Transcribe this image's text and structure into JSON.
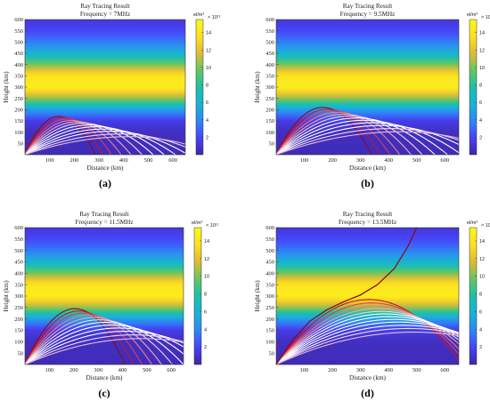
{
  "colormap": [
    "#3e26a8",
    "#4743f8",
    "#2e87f7",
    "#1ab2d5",
    "#1cc0aa",
    "#66c561",
    "#ddbc35",
    "#fddf23",
    "#f9fb15"
  ],
  "chart_data": [
    {
      "type": "line",
      "title": "Ray Tracing Result",
      "subtitle": "Frequency = 7MHz",
      "caption": "(a)",
      "xlabel": "Distance (km)",
      "ylabel": "Height (km)",
      "xlim": [
        0,
        650
      ],
      "ylim": [
        0,
        600
      ],
      "xticks": [
        100,
        200,
        300,
        400,
        500,
        600
      ],
      "yticks": [
        50,
        100,
        150,
        200,
        250,
        300,
        350,
        400,
        450,
        500,
        550,
        600
      ],
      "colorbar": {
        "unit": "el/m³",
        "exponent": "× 10¹¹",
        "ticks": [
          2,
          4,
          6,
          8,
          10,
          12,
          14
        ],
        "range": [
          0,
          15.5
        ]
      },
      "density_profile_km": [
        [
          0,
          0.4
        ],
        [
          100,
          0.6
        ],
        [
          150,
          1.5
        ],
        [
          200,
          4.8
        ],
        [
          250,
          10.5
        ],
        [
          300,
          14.5
        ],
        [
          350,
          14
        ],
        [
          400,
          10
        ],
        [
          450,
          6
        ],
        [
          500,
          3.5
        ],
        [
          550,
          2
        ],
        [
          600,
          1.2
        ]
      ],
      "series": [
        {
          "peak_x": 135,
          "peak_y": 170,
          "range_x": 285,
          "color": "#8b0a1a"
        },
        {
          "peak_x": 150,
          "peak_y": 165,
          "range_x": 315,
          "color": "#c7162b"
        },
        {
          "peak_x": 168,
          "peak_y": 158,
          "range_x": 350,
          "color": "#e8394d"
        },
        {
          "peak_x": 188,
          "peak_y": 152,
          "range_x": 390,
          "color": "#f1798a"
        },
        {
          "peak_x": 210,
          "peak_y": 146,
          "range_x": 430,
          "color": "#f6a9a8"
        },
        {
          "peak_x": 235,
          "peak_y": 140,
          "range_x": 475,
          "color": "#fbd6c8"
        },
        {
          "peak_x": 260,
          "peak_y": 132,
          "range_x": 520,
          "color": "#ffffff"
        },
        {
          "peak_x": 290,
          "peak_y": 124,
          "range_x": 565,
          "color": "#ffffff"
        },
        {
          "peak_x": 320,
          "peak_y": 114,
          "range_x": 610,
          "color": "#ffffff"
        },
        {
          "peak_x": 350,
          "peak_y": 104,
          "range_x": 660,
          "color": "#ffffff"
        },
        {
          "peak_x": 385,
          "peak_y": 92,
          "range_x": 720,
          "color": "#f5d7ec"
        },
        {
          "peak_x": 420,
          "peak_y": 80,
          "range_x": 780,
          "color": "#e7bdd6"
        }
      ]
    },
    {
      "type": "line",
      "title": "Ray Tracing Result",
      "subtitle": "Frequency = 9.5MHz",
      "caption": "(b)",
      "xlabel": "Distance (km)",
      "ylabel": "Height (km)",
      "xlim": [
        0,
        650
      ],
      "ylim": [
        0,
        600
      ],
      "xticks": [
        100,
        200,
        300,
        400,
        500,
        600
      ],
      "yticks": [
        50,
        100,
        150,
        200,
        250,
        300,
        350,
        400,
        450,
        500,
        550,
        600
      ],
      "colorbar": {
        "unit": "el/m³",
        "exponent": "× 10¹¹",
        "ticks": [
          2,
          4,
          6,
          8,
          10,
          12,
          14
        ],
        "range": [
          0,
          15.5
        ]
      },
      "density_profile_km": [
        [
          0,
          0.4
        ],
        [
          100,
          0.6
        ],
        [
          150,
          1.5
        ],
        [
          200,
          4.8
        ],
        [
          250,
          10.5
        ],
        [
          300,
          14.5
        ],
        [
          350,
          14
        ],
        [
          400,
          10
        ],
        [
          450,
          6
        ],
        [
          500,
          3.5
        ],
        [
          550,
          2
        ],
        [
          600,
          1.2
        ]
      ],
      "series": [
        {
          "peak_x": 165,
          "peak_y": 210,
          "range_x": 340,
          "color": "#8b0a1a"
        },
        {
          "peak_x": 180,
          "peak_y": 202,
          "range_x": 370,
          "color": "#c7162b"
        },
        {
          "peak_x": 198,
          "peak_y": 195,
          "range_x": 405,
          "color": "#e8394d"
        },
        {
          "peak_x": 218,
          "peak_y": 188,
          "range_x": 440,
          "color": "#f1798a"
        },
        {
          "peak_x": 240,
          "peak_y": 180,
          "range_x": 480,
          "color": "#f6a9a8"
        },
        {
          "peak_x": 262,
          "peak_y": 172,
          "range_x": 520,
          "color": "#fbd6c8"
        },
        {
          "peak_x": 288,
          "peak_y": 163,
          "range_x": 565,
          "color": "#ffffff"
        },
        {
          "peak_x": 315,
          "peak_y": 153,
          "range_x": 610,
          "color": "#ffffff"
        },
        {
          "peak_x": 345,
          "peak_y": 142,
          "range_x": 660,
          "color": "#ffffff"
        },
        {
          "peak_x": 378,
          "peak_y": 130,
          "range_x": 715,
          "color": "#ffffff"
        },
        {
          "peak_x": 410,
          "peak_y": 116,
          "range_x": 770,
          "color": "#f5d7ec"
        },
        {
          "peak_x": 445,
          "peak_y": 102,
          "range_x": 830,
          "color": "#e7bdd6"
        }
      ]
    },
    {
      "type": "line",
      "title": "Ray Tracing Result",
      "subtitle": "Frequency = 11.5MHz",
      "caption": "(c)",
      "xlabel": "Distance (km)",
      "ylabel": "Height (km)",
      "xlim": [
        0,
        650
      ],
      "ylim": [
        0,
        600
      ],
      "xticks": [
        100,
        200,
        300,
        400,
        500,
        600
      ],
      "yticks": [
        50,
        100,
        150,
        200,
        250,
        300,
        350,
        400,
        450,
        500,
        550,
        600
      ],
      "colorbar": {
        "unit": "el/m³",
        "exponent": "× 10¹¹",
        "ticks": [
          2,
          4,
          6,
          8,
          10,
          12,
          14
        ],
        "range": [
          0,
          15.5
        ]
      },
      "density_profile_km": [
        [
          0,
          0.4
        ],
        [
          100,
          0.6
        ],
        [
          150,
          1.5
        ],
        [
          200,
          4.8
        ],
        [
          250,
          10.5
        ],
        [
          300,
          14.5
        ],
        [
          350,
          14
        ],
        [
          400,
          10
        ],
        [
          450,
          6
        ],
        [
          500,
          3.5
        ],
        [
          550,
          2
        ],
        [
          600,
          1.2
        ]
      ],
      "series": [
        {
          "peak_x": 205,
          "peak_y": 245,
          "range_x": 410,
          "color": "#8b0a1a"
        },
        {
          "peak_x": 222,
          "peak_y": 235,
          "range_x": 445,
          "color": "#c7162b"
        },
        {
          "peak_x": 240,
          "peak_y": 226,
          "range_x": 480,
          "color": "#e8394d"
        },
        {
          "peak_x": 260,
          "peak_y": 216,
          "range_x": 520,
          "color": "#f1798a"
        },
        {
          "peak_x": 282,
          "peak_y": 206,
          "range_x": 560,
          "color": "#f6a9a8"
        },
        {
          "peak_x": 305,
          "peak_y": 196,
          "range_x": 605,
          "color": "#fbd6c8"
        },
        {
          "peak_x": 330,
          "peak_y": 185,
          "range_x": 650,
          "color": "#ffffff"
        },
        {
          "peak_x": 356,
          "peak_y": 173,
          "range_x": 700,
          "color": "#ffffff"
        },
        {
          "peak_x": 384,
          "peak_y": 160,
          "range_x": 755,
          "color": "#ffffff"
        },
        {
          "peak_x": 414,
          "peak_y": 146,
          "range_x": 810,
          "color": "#ffffff"
        },
        {
          "peak_x": 446,
          "peak_y": 130,
          "range_x": 870,
          "color": "#f5d7ec"
        },
        {
          "peak_x": 480,
          "peak_y": 114,
          "range_x": 930,
          "color": "#e7bdd6"
        }
      ]
    },
    {
      "type": "line",
      "title": "Ray Tracing Result",
      "subtitle": "Frequency = 13.5MHz",
      "caption": "(d)",
      "xlabel": "Distance (km)",
      "ylabel": "Height (km)",
      "xlim": [
        0,
        650
      ],
      "ylim": [
        0,
        600
      ],
      "xticks": [
        100,
        200,
        300,
        400,
        500,
        600
      ],
      "yticks": [
        50,
        100,
        150,
        200,
        250,
        300,
        350,
        400,
        450,
        500,
        550,
        600
      ],
      "colorbar": {
        "unit": "el/m³",
        "exponent": "× 10¹¹",
        "ticks": [
          2,
          4,
          6,
          8,
          10,
          12,
          14
        ],
        "range": [
          0,
          15.5
        ]
      },
      "density_profile_km": [
        [
          0,
          0.4
        ],
        [
          100,
          0.6
        ],
        [
          150,
          1.5
        ],
        [
          200,
          4.8
        ],
        [
          250,
          10.5
        ],
        [
          300,
          14.5
        ],
        [
          350,
          14
        ],
        [
          400,
          10
        ],
        [
          450,
          6
        ],
        [
          500,
          3.5
        ],
        [
          550,
          2
        ],
        [
          600,
          1.2
        ]
      ],
      "escaping_ray": {
        "points": [
          [
            0,
            0
          ],
          [
            60,
            110
          ],
          [
            120,
            190
          ],
          [
            180,
            240
          ],
          [
            240,
            275
          ],
          [
            300,
            305
          ],
          [
            360,
            350
          ],
          [
            420,
            420
          ],
          [
            470,
            520
          ],
          [
            500,
            600
          ]
        ],
        "color": "#8b0a1a"
      },
      "series": [
        {
          "peak_x": 330,
          "peak_y": 285,
          "range_x": 660,
          "color": "#c7162b"
        },
        {
          "peak_x": 340,
          "peak_y": 270,
          "range_x": 680,
          "color": "#e8394d"
        },
        {
          "peak_x": 350,
          "peak_y": 257,
          "range_x": 700,
          "color": "#f1798a"
        },
        {
          "peak_x": 362,
          "peak_y": 245,
          "range_x": 725,
          "color": "#f6a9a8"
        },
        {
          "peak_x": 375,
          "peak_y": 233,
          "range_x": 750,
          "color": "#fbd6c8"
        },
        {
          "peak_x": 388,
          "peak_y": 222,
          "range_x": 775,
          "color": "#ffffff"
        },
        {
          "peak_x": 402,
          "peak_y": 210,
          "range_x": 805,
          "color": "#ffffff"
        },
        {
          "peak_x": 418,
          "peak_y": 198,
          "range_x": 835,
          "color": "#ffffff"
        },
        {
          "peak_x": 434,
          "peak_y": 186,
          "range_x": 868,
          "color": "#ffffff"
        },
        {
          "peak_x": 452,
          "peak_y": 172,
          "range_x": 905,
          "color": "#ffffff"
        },
        {
          "peak_x": 470,
          "peak_y": 158,
          "range_x": 940,
          "color": "#f5d7ec"
        },
        {
          "peak_x": 490,
          "peak_y": 142,
          "range_x": 980,
          "color": "#e7bdd6"
        }
      ]
    }
  ]
}
